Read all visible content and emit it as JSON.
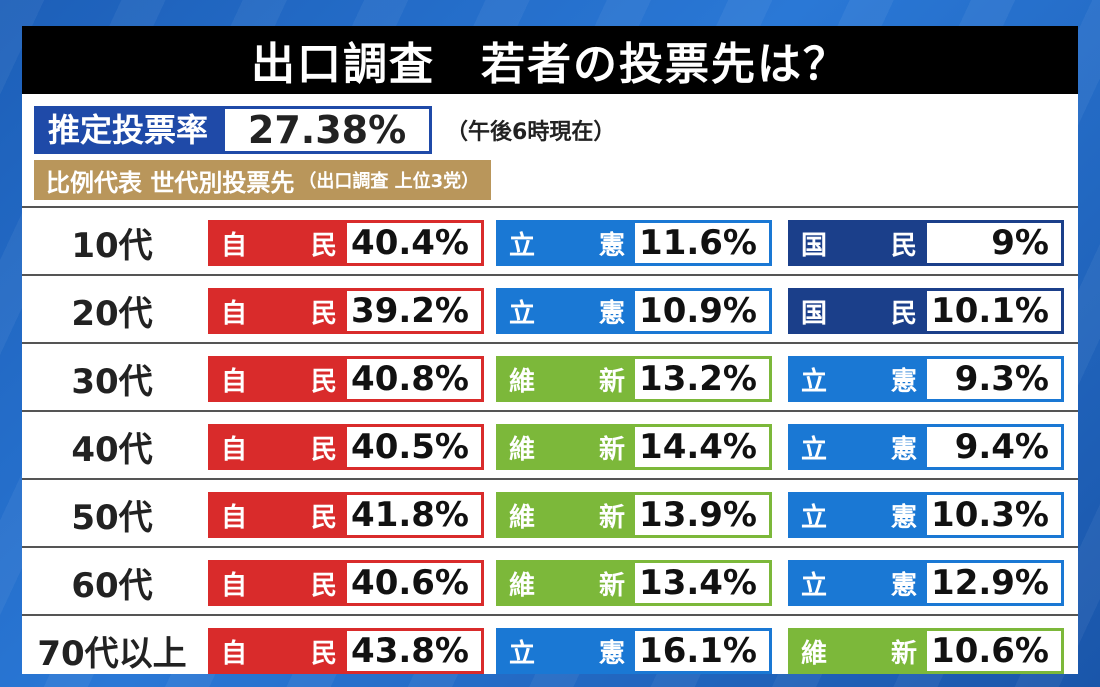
{
  "title": "出口調査　若者の投票先は？",
  "turnout": {
    "label": "推定投票率",
    "value": "27.38%",
    "note": "（午後6時現在）"
  },
  "subtitle": {
    "main": "比例代表 世代別投票先",
    "note": "（出口調査 上位3党）"
  },
  "parties": {
    "ldp": {
      "chars": [
        "自",
        "民"
      ],
      "color": "#d92b2b"
    },
    "cdp": {
      "chars": [
        "立",
        "憲"
      ],
      "color": "#1a78d4"
    },
    "dpp": {
      "chars": [
        "国",
        "民"
      ],
      "color": "#1b3f8a"
    },
    "ishin": {
      "chars": [
        "維",
        "新"
      ],
      "color": "#7cb83a"
    }
  },
  "rows": [
    {
      "label": "10代",
      "results": [
        {
          "party": "ldp",
          "pct": "40.4%"
        },
        {
          "party": "cdp",
          "pct": "11.6%"
        },
        {
          "party": "dpp",
          "pct": "9%"
        }
      ]
    },
    {
      "label": "20代",
      "results": [
        {
          "party": "ldp",
          "pct": "39.2%"
        },
        {
          "party": "cdp",
          "pct": "10.9%"
        },
        {
          "party": "dpp",
          "pct": "10.1%"
        }
      ]
    },
    {
      "label": "30代",
      "results": [
        {
          "party": "ldp",
          "pct": "40.8%"
        },
        {
          "party": "ishin",
          "pct": "13.2%"
        },
        {
          "party": "cdp",
          "pct": "9.3%"
        }
      ]
    },
    {
      "label": "40代",
      "results": [
        {
          "party": "ldp",
          "pct": "40.5%"
        },
        {
          "party": "ishin",
          "pct": "14.4%"
        },
        {
          "party": "cdp",
          "pct": "9.4%"
        }
      ]
    },
    {
      "label": "50代",
      "results": [
        {
          "party": "ldp",
          "pct": "41.8%"
        },
        {
          "party": "ishin",
          "pct": "13.9%"
        },
        {
          "party": "cdp",
          "pct": "10.3%"
        }
      ]
    },
    {
      "label": "60代",
      "results": [
        {
          "party": "ldp",
          "pct": "40.6%"
        },
        {
          "party": "ishin",
          "pct": "13.4%"
        },
        {
          "party": "cdp",
          "pct": "12.9%"
        }
      ]
    },
    {
      "label": "70代以上",
      "results": [
        {
          "party": "ldp",
          "pct": "43.8%"
        },
        {
          "party": "cdp",
          "pct": "16.1%"
        },
        {
          "party": "ishin",
          "pct": "10.6%"
        }
      ]
    }
  ]
}
